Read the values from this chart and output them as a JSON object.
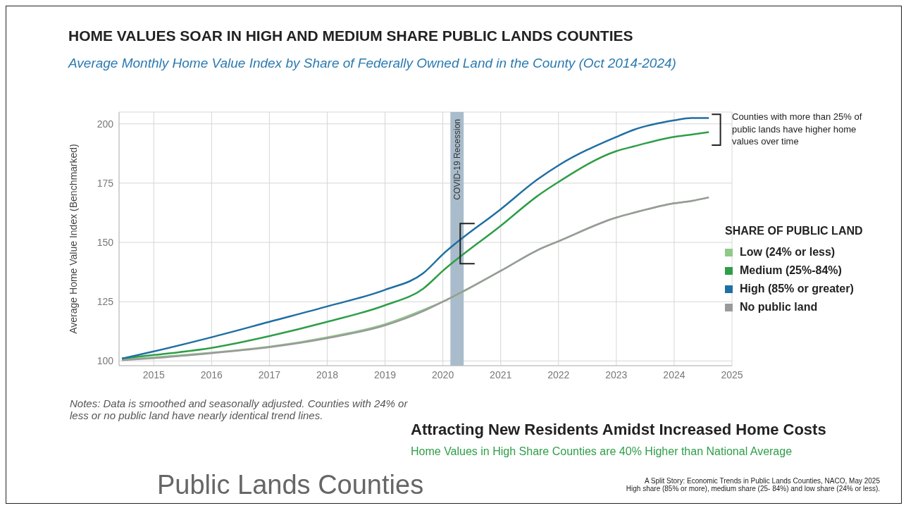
{
  "chart_data": {
    "type": "line",
    "title": "HOME VALUES SOAR IN HIGH AND MEDIUM SHARE PUBLIC LANDS COUNTIES",
    "subtitle": "Average Monthly Home Value Index by Share of Federally Owned Land in the County (Oct 2014-2024)",
    "ylabel": "Average Home Value Index (Benchmarked)",
    "legend_title": "SHARE OF PUBLIC LAND",
    "legend": "right",
    "grid": true,
    "marker": "none",
    "line_style": "solid",
    "x": [
      2014.45,
      2015,
      2016,
      2017,
      2018,
      2019,
      2019.66,
      2020,
      2021,
      2021.66,
      2022,
      2023,
      2023.3,
      2024,
      2024.3,
      2024.6
    ],
    "xlim": [
      2014.4,
      2025
    ],
    "xticks": [
      2015,
      2016,
      2017,
      2018,
      2019,
      2020,
      2021,
      2022,
      2023,
      2024,
      2025
    ],
    "ylim": [
      98,
      205
    ],
    "yticks": [
      100,
      125,
      150,
      175,
      200
    ],
    "series": [
      {
        "name": "Low (24% or less)",
        "color": "#8fc98a",
        "values": [
          100.5,
          101.5,
          103.5,
          106,
          110,
          115.5,
          121.5,
          125,
          138,
          147,
          150.5,
          160.5,
          162.5,
          166.5,
          167.5,
          169
        ]
      },
      {
        "name": "Medium (25%-84%)",
        "color": "#2e9e48",
        "values": [
          101,
          102.5,
          105.5,
          110.5,
          116.5,
          123.5,
          130.5,
          138,
          157,
          170,
          175.5,
          188.5,
          190.5,
          194.5,
          195.5,
          196.5
        ]
      },
      {
        "name": "High (85% or greater)",
        "color": "#1f6fa3",
        "values": [
          101,
          104,
          110,
          116.5,
          123,
          130,
          137,
          145,
          164,
          177,
          182.5,
          194.5,
          197.5,
          201.5,
          202.5,
          202.5
        ]
      },
      {
        "name": "No public land",
        "color": "#9a9a9a",
        "values": [
          100.3,
          101.2,
          103.3,
          105.8,
          109.6,
          115,
          121,
          125,
          138,
          147,
          150.5,
          160.5,
          162.5,
          166.5,
          167.5,
          169
        ]
      }
    ],
    "bands": [
      {
        "axis": "x",
        "from": 2020.13,
        "to": 2020.36,
        "label": "COVID-19 Recession",
        "color": "#a9bccb"
      }
    ],
    "annotations": [
      "Counties with more than 25% of public lands have higher home values over time",
      "Notes: Data is smoothed and seasonally adjusted. Counties with 24% or less or no public land have nearly identical trend lines.",
      "Attracting New Residents Amidst Increased Home Costs",
      "Home Values in High Share Counties are 40% Higher than National Average",
      "Public Lands Counties",
      "A Split Story: Economic Trends in Public Lands Counties, NACO, May 2025",
      "High share (85% or more), medium share (25- 84%) and low share (24% or less)."
    ]
  }
}
